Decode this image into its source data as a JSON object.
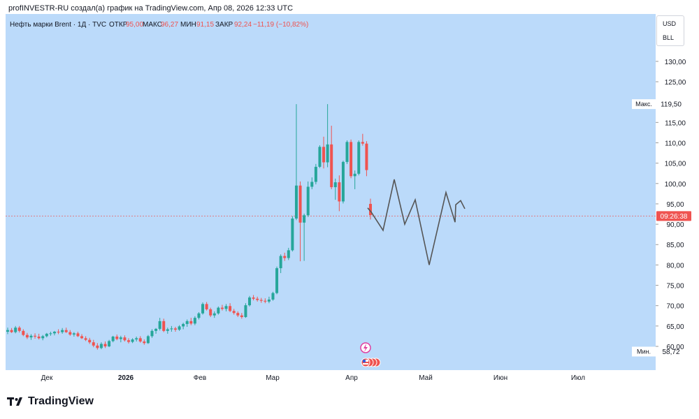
{
  "header": {
    "text": "profINVESTR-RU создал(а) график на TradingView.com, Апр 08, 2026 12:33 UTC"
  },
  "legend": {
    "symbol": "Нефть марки Brent · 1Д · TVC",
    "open_label": "ОТКР",
    "open": "95,00",
    "high_label": "МАКС",
    "high": "96,27",
    "low_label": "МИН",
    "low": "91,15",
    "close_label": "ЗАКР",
    "close": "92,24",
    "change": "−11,19 (−10,82%)"
  },
  "currency": {
    "top": "USD",
    "bottom": "BLL"
  },
  "branding": {
    "name": "TradingView"
  },
  "colors": {
    "background": "#bbdafa",
    "up": "#26a69a",
    "down": "#ef5350",
    "forecast": "#555555",
    "price_line": "#ef5350",
    "text": "#131722",
    "muted": "#555555"
  },
  "chart_data": {
    "type": "candlestick",
    "y_axis": {
      "range": [
        58,
        133
      ],
      "ticks": [
        "60,00",
        "65,00",
        "70,00",
        "75,00",
        "80,00",
        "85,00",
        "90,00",
        "95,00",
        "100,00",
        "105,00",
        "110,00",
        "115,00",
        "125,00",
        "130,00"
      ]
    },
    "x_axis": {
      "ticks": [
        "Дек",
        "2026",
        "Фев",
        "Мар",
        "Апр",
        "Май",
        "Июн",
        "Июл"
      ]
    },
    "price_label": {
      "value": 92,
      "text": "09:26:38"
    },
    "max_marker": {
      "label": "Макс.",
      "value_text": "119,50",
      "value": 119.5
    },
    "min_marker": {
      "label": "Мин.",
      "value_text": "58,72",
      "value": 58.72
    },
    "candles": [
      [
        63.6,
        64.6,
        63.0,
        64.0
      ],
      [
        64.0,
        64.5,
        63.3,
        63.5
      ],
      [
        63.5,
        65.0,
        63.2,
        64.6
      ],
      [
        64.6,
        65.0,
        63.4,
        63.8
      ],
      [
        63.8,
        64.2,
        62.5,
        62.8
      ],
      [
        62.8,
        63.3,
        61.8,
        62.2
      ],
      [
        62.2,
        63.0,
        61.6,
        62.6
      ],
      [
        62.6,
        63.2,
        61.9,
        62.4
      ],
      [
        62.4,
        63.1,
        61.7,
        62.0
      ],
      [
        62.0,
        62.8,
        61.5,
        62.5
      ],
      [
        62.5,
        63.3,
        62.2,
        63.1
      ],
      [
        63.1,
        63.6,
        62.6,
        63.2
      ],
      [
        63.2,
        63.8,
        62.7,
        63.6
      ],
      [
        63.6,
        64.2,
        63.0,
        63.5
      ],
      [
        63.5,
        64.5,
        63.1,
        64.0
      ],
      [
        64.0,
        64.6,
        63.3,
        63.5
      ],
      [
        63.5,
        64.0,
        62.6,
        62.9
      ],
      [
        62.9,
        63.5,
        62.4,
        63.2
      ],
      [
        63.2,
        63.6,
        62.3,
        62.5
      ],
      [
        62.5,
        63.0,
        61.8,
        62.0
      ],
      [
        62.0,
        62.5,
        61.3,
        61.6
      ],
      [
        61.6,
        62.1,
        60.6,
        61.0
      ],
      [
        61.0,
        61.6,
        59.8,
        60.2
      ],
      [
        60.2,
        60.8,
        59.2,
        59.6
      ],
      [
        59.6,
        61.0,
        59.3,
        60.6
      ],
      [
        60.6,
        61.2,
        59.6,
        60.0
      ],
      [
        60.0,
        61.6,
        59.8,
        61.3
      ],
      [
        61.3,
        62.6,
        61.0,
        62.4
      ],
      [
        62.4,
        62.9,
        61.5,
        61.8
      ],
      [
        61.8,
        62.6,
        61.0,
        62.2
      ],
      [
        62.2,
        62.7,
        61.2,
        61.5
      ],
      [
        61.5,
        62.0,
        60.7,
        61.1
      ],
      [
        61.1,
        62.0,
        60.8,
        61.7
      ],
      [
        61.7,
        62.4,
        61.2,
        62.0
      ],
      [
        62.0,
        62.5,
        60.9,
        61.2
      ],
      [
        61.2,
        61.7,
        60.4,
        60.8
      ],
      [
        60.8,
        62.8,
        60.6,
        62.5
      ],
      [
        62.5,
        64.2,
        62.1,
        63.8
      ],
      [
        63.8,
        64.5,
        63.1,
        64.3
      ],
      [
        64.3,
        67.0,
        63.9,
        66.2
      ],
      [
        66.2,
        66.8,
        63.5,
        63.8
      ],
      [
        63.8,
        64.6,
        63.1,
        64.2
      ],
      [
        64.2,
        65.0,
        63.6,
        64.4
      ],
      [
        64.4,
        64.8,
        63.6,
        64.1
      ],
      [
        64.1,
        65.2,
        63.8,
        64.9
      ],
      [
        64.9,
        65.8,
        64.2,
        65.5
      ],
      [
        65.5,
        66.6,
        64.8,
        66.2
      ],
      [
        66.2,
        67.0,
        65.2,
        65.6
      ],
      [
        65.6,
        67.4,
        65.2,
        67.0
      ],
      [
        67.0,
        68.4,
        66.6,
        68.1
      ],
      [
        68.1,
        70.8,
        67.8,
        70.4
      ],
      [
        70.4,
        70.9,
        68.8,
        69.1
      ],
      [
        69.1,
        69.5,
        67.2,
        67.6
      ],
      [
        67.6,
        68.6,
        67.0,
        68.1
      ],
      [
        68.1,
        69.8,
        67.8,
        69.5
      ],
      [
        69.5,
        70.2,
        68.8,
        69.2
      ],
      [
        69.2,
        70.4,
        68.6,
        69.9
      ],
      [
        69.9,
        70.6,
        68.4,
        68.7
      ],
      [
        68.7,
        69.2,
        67.8,
        68.2
      ],
      [
        68.2,
        68.6,
        67.2,
        67.6
      ],
      [
        67.6,
        68.2,
        66.8,
        67.2
      ],
      [
        67.2,
        70.6,
        67.0,
        70.1
      ],
      [
        70.1,
        72.4,
        69.8,
        72.0
      ],
      [
        72.0,
        72.6,
        71.3,
        71.7
      ],
      [
        71.7,
        72.2,
        71.0,
        71.4
      ],
      [
        71.4,
        71.9,
        70.7,
        71.2
      ],
      [
        71.2,
        71.8,
        70.6,
        71.0
      ],
      [
        71.0,
        72.2,
        70.6,
        71.5
      ],
      [
        71.5,
        73.4,
        71.2,
        73.1
      ],
      [
        73.1,
        79.6,
        72.8,
        79.2
      ],
      [
        79.2,
        82.6,
        78.0,
        82.2
      ],
      [
        82.2,
        83.0,
        81.0,
        81.7
      ],
      [
        81.7,
        84.2,
        81.2,
        83.6
      ],
      [
        83.6,
        92.0,
        83.3,
        91.4
      ],
      [
        91.4,
        119.5,
        91.0,
        99.5
      ],
      [
        99.5,
        100.5,
        80.9,
        90.4
      ],
      [
        90.4,
        92.6,
        81.0,
        92.2
      ],
      [
        92.2,
        100.5,
        91.8,
        99.2
      ],
      [
        99.2,
        101.5,
        98.6,
        100.4
      ],
      [
        100.4,
        104.8,
        99.8,
        104.1
      ],
      [
        104.1,
        109.4,
        103.8,
        109.0
      ],
      [
        109.0,
        111.5,
        103.7,
        105.2
      ],
      [
        105.2,
        119.5,
        104.0,
        109.6
      ],
      [
        109.6,
        114.2,
        98.6,
        99.1
      ],
      [
        99.1,
        101.2,
        96.0,
        100.3
      ],
      [
        100.3,
        102.0,
        93.2,
        95.6
      ],
      [
        95.6,
        105.6,
        95.1,
        105.3
      ],
      [
        105.3,
        110.6,
        104.8,
        110.2
      ],
      [
        110.2,
        110.8,
        101.3,
        101.8
      ],
      [
        101.8,
        103.2,
        98.6,
        102.4
      ],
      [
        102.4,
        110.6,
        102.0,
        110.2
      ],
      [
        110.2,
        112.2,
        109.3,
        109.8
      ],
      [
        109.8,
        110.4,
        101.8,
        103.3
      ],
      [
        95.0,
        96.27,
        91.15,
        92.24
      ]
    ],
    "forecast": [
      [
        526,
        94
      ],
      [
        531,
        93
      ],
      [
        548,
        88.5
      ],
      [
        564,
        101
      ],
      [
        579,
        90
      ],
      [
        594,
        96
      ],
      [
        614,
        80
      ],
      [
        638,
        97.8
      ],
      [
        651,
        90.5
      ],
      [
        652,
        94.8
      ],
      [
        659,
        95.8
      ],
      [
        665,
        93.8
      ]
    ]
  }
}
